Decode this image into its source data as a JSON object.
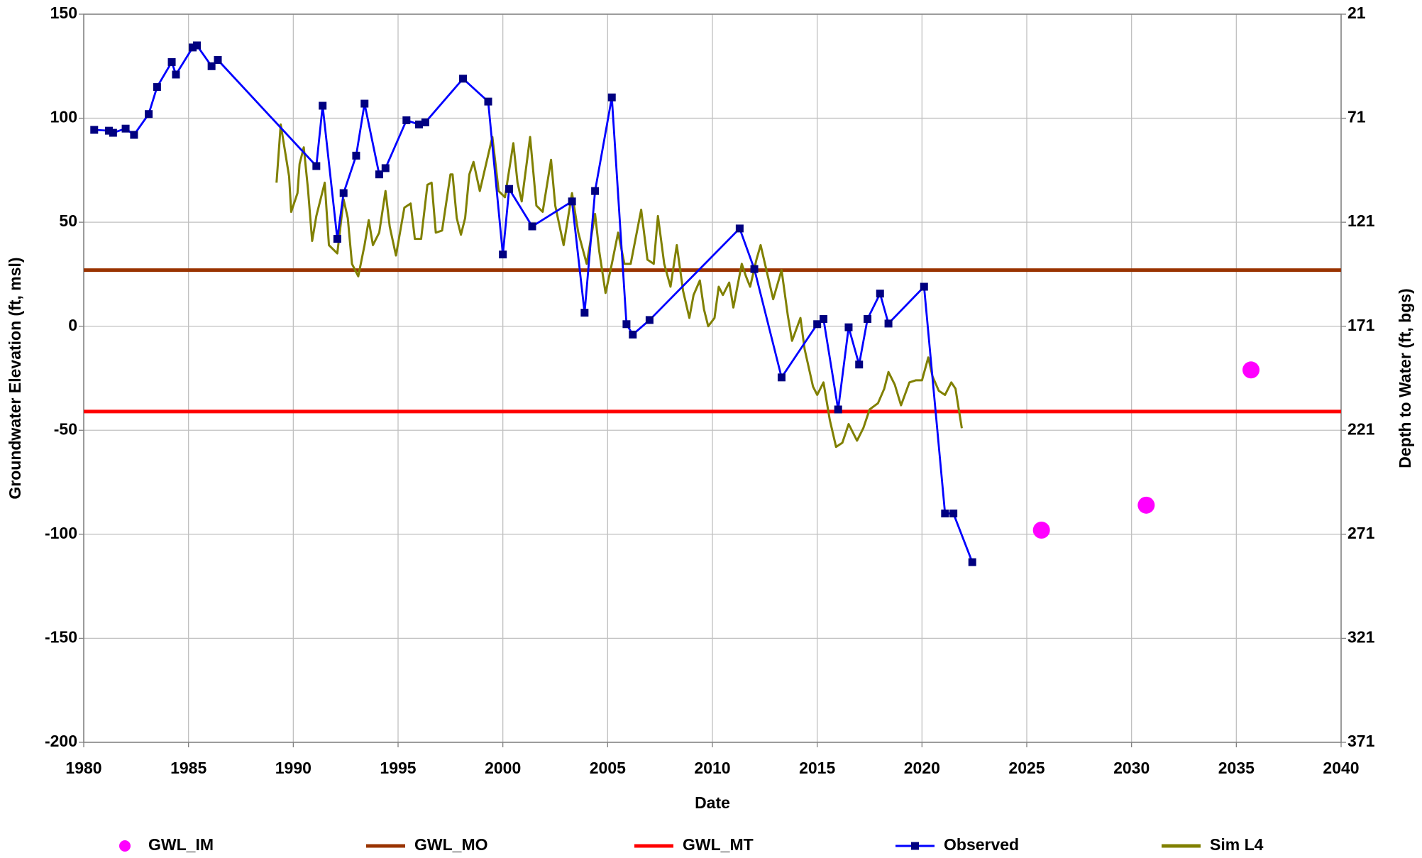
{
  "chart_data": {
    "type": "line",
    "xlabel": "Date",
    "ylabel": "Groundwater Elevation (ft, msl)",
    "y2label": "Depth to Water (ft, bgs)",
    "xlim": [
      1980,
      2040
    ],
    "xticks": [
      1980,
      1985,
      1990,
      1995,
      2000,
      2005,
      2010,
      2015,
      2020,
      2025,
      2030,
      2035,
      2040
    ],
    "ylim": [
      -200,
      150
    ],
    "yticks": [
      -200,
      -150,
      -100,
      -50,
      0,
      50,
      100,
      150
    ],
    "y2lim": [
      371,
      21
    ],
    "y2ticks": [
      371,
      321,
      271,
      221,
      171,
      121,
      71,
      21
    ],
    "grid": true,
    "legend": "bottom",
    "series": [
      {
        "name": "GWL_IM",
        "type": "scatter",
        "color": "#ff00ff",
        "x": [
          2025.7,
          2030.7,
          2035.7
        ],
        "values": [
          -98,
          -86,
          -21
        ]
      },
      {
        "name": "GWL_MO",
        "type": "line",
        "color": "#993300",
        "x": [
          1980,
          2040
        ],
        "values": [
          27,
          27
        ]
      },
      {
        "name": "GWL_MT",
        "type": "line",
        "color": "#ff0000",
        "x": [
          1980,
          2040
        ],
        "values": [
          -41,
          -41
        ]
      },
      {
        "name": "Observed",
        "type": "line",
        "color": "#0000ff",
        "marker": "square",
        "marker_color": "#000080",
        "x": [
          1980.5,
          1981.2,
          1981.4,
          1982.0,
          1982.4,
          1983.1,
          1983.5,
          1984.2,
          1984.4,
          1985.2,
          1985.4,
          1986.1,
          1986.4,
          1991.1,
          1991.4,
          1992.1,
          1992.4,
          1993.0,
          1993.4,
          1994.1,
          1994.4,
          1995.4,
          1996.0,
          1996.3,
          1998.1,
          1999.3,
          2000.0,
          2000.3,
          2001.4,
          2003.3,
          2003.9,
          2004.4,
          2005.2,
          2005.9,
          2006.2,
          2007.0,
          2011.3,
          2012.0,
          2013.3,
          2015.0,
          2015.3,
          2016.0,
          2016.5,
          2017.0,
          2017.4,
          2018.0,
          2018.4,
          2020.1,
          2021.1,
          2021.5,
          2022.4
        ],
        "values": [
          94.4,
          94,
          93,
          95,
          92,
          102,
          115,
          127,
          121,
          134,
          135,
          125,
          128,
          77,
          106,
          42,
          64,
          82,
          107,
          73,
          76,
          99,
          97,
          98,
          119,
          108,
          34.5,
          66,
          48,
          60,
          6.5,
          65,
          110,
          1,
          -4,
          3,
          47,
          27.5,
          -24.6,
          1,
          3.5,
          -40,
          -0.5,
          -18.4,
          3.5,
          15.7,
          1.3,
          19,
          -90,
          -90,
          -113.4
        ]
      },
      {
        "name": "Sim L4",
        "type": "line",
        "color": "#808000",
        "x": [
          1989.2,
          1989.4,
          1989.8,
          1989.9,
          1990.2,
          1990.3,
          1990.5,
          1990.7,
          1990.9,
          1991.1,
          1991.5,
          1991.7,
          1992.1,
          1992.4,
          1992.6,
          1992.8,
          1993.1,
          1993.4,
          1993.6,
          1993.8,
          1994.1,
          1994.4,
          1994.6,
          1994.9,
          1995.3,
          1995.6,
          1995.8,
          1996.1,
          1996.4,
          1996.6,
          1996.8,
          1997.1,
          1997.5,
          1997.6,
          1997.8,
          1998.0,
          1998.2,
          1998.4,
          1998.6,
          1998.9,
          1999.2,
          1999.5,
          1999.8,
          2000.1,
          2000.5,
          2000.7,
          2000.9,
          2001.3,
          2001.6,
          2001.9,
          2002.3,
          2002.5,
          2002.9,
          2003.3,
          2003.6,
          2004.0,
          2004.4,
          2004.6,
          2004.9,
          2005.2,
          2005.5,
          2005.8,
          2006.1,
          2006.6,
          2006.9,
          2007.2,
          2007.4,
          2007.7,
          2008.0,
          2008.3,
          2008.6,
          2008.9,
          2009.1,
          2009.4,
          2009.6,
          2009.8,
          2010.1,
          2010.3,
          2010.5,
          2010.8,
          2011.0,
          2011.4,
          2011.6,
          2011.8,
          2012.1,
          2012.3,
          2012.6,
          2012.9,
          2013.3,
          2013.6,
          2013.8,
          2014.2,
          2014.4,
          2014.8,
          2015.0,
          2015.3,
          2015.6,
          2015.9,
          2016.2,
          2016.5,
          2016.9,
          2017.2,
          2017.5,
          2017.9,
          2018.2,
          2018.4,
          2018.7,
          2019.0,
          2019.4,
          2019.7,
          2020.0,
          2020.3,
          2020.5,
          2020.8,
          2021.1,
          2021.4,
          2021.6,
          2021.9
        ],
        "values": [
          69,
          97,
          72,
          55,
          64,
          78,
          86,
          66,
          41,
          53,
          69,
          39,
          35,
          61,
          52,
          30,
          24,
          39,
          51,
          39,
          45,
          65,
          48,
          34,
          57,
          59,
          42,
          42,
          68,
          69,
          45,
          46,
          73,
          73,
          52,
          44,
          52,
          73,
          79,
          65,
          78,
          91,
          65,
          62,
          88,
          69,
          60,
          91,
          58,
          55,
          80,
          58,
          39,
          64,
          45,
          30,
          54,
          36,
          16,
          30,
          45,
          30,
          30,
          56,
          32,
          30,
          53,
          30,
          19,
          39,
          17,
          4,
          15,
          22,
          8,
          0,
          4,
          19,
          15,
          21,
          9,
          30,
          24,
          19,
          32,
          39,
          26,
          13,
          27,
          5,
          -7,
          4,
          -11,
          -29,
          -33,
          -27,
          -45,
          -58,
          -56,
          -47,
          -55,
          -49,
          -40,
          -37,
          -30,
          -22,
          -28,
          -38,
          -27,
          -26,
          -26,
          -15,
          -24,
          -31,
          -33,
          -27,
          -30,
          -49
        ]
      }
    ]
  }
}
